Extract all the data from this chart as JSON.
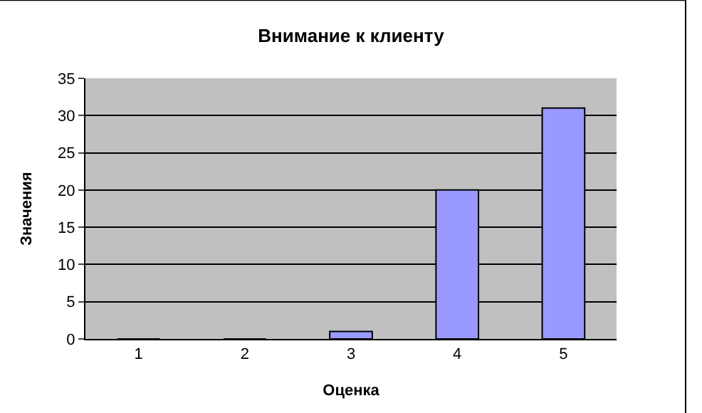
{
  "chart_data": {
    "type": "bar",
    "title": "Внимание к клиенту",
    "xlabel": "Оценка",
    "ylabel": "Значения",
    "categories": [
      "1",
      "2",
      "3",
      "4",
      "5"
    ],
    "values": [
      0,
      0,
      1,
      20,
      31
    ],
    "color": "#9999ff",
    "ylim": [
      0,
      35
    ],
    "yticks": [
      0,
      5,
      10,
      15,
      20,
      25,
      30,
      35
    ],
    "grid": "y"
  }
}
